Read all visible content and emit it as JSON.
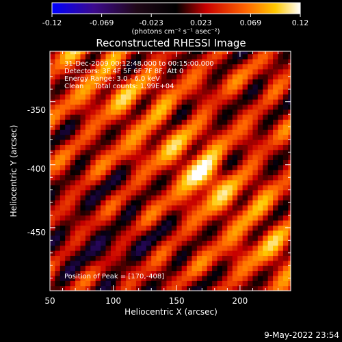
{
  "chart_data": {
    "type": "heatmap",
    "title": "Reconstructed RHESSI Image",
    "xlabel": "Heliocentric X (arcsec)",
    "ylabel": "Heliocentric Y (arcsec)",
    "xlim": [
      50,
      240
    ],
    "ylim": [
      -500,
      -310
    ],
    "x_ticks": [
      50,
      100,
      150,
      200
    ],
    "y_ticks": [
      -350,
      -400,
      -450
    ],
    "colorbar": {
      "range": [
        -0.12,
        0.12
      ],
      "ticks": [
        "-0.12",
        "-0.069",
        "-0.023",
        "0.023",
        "0.069",
        "0.12"
      ],
      "label": "(photons cm⁻² s⁻¹ asec⁻²)"
    },
    "annotations": [
      "31-Dec-2009 00:12:48.000 to 00:15:00.000",
      "Detectors: 3F 4F 5F 6F 7F 8F, Att 0",
      "Energy Range: 3.0 - 6.0 keV",
      "Clean     Total counts: 1.99E+04"
    ],
    "peak_text": "Position of Peak = [170,-408]",
    "peak": {
      "x": 170,
      "y": -408,
      "value": 0.12
    },
    "stripe_angle_deg": 135,
    "colormap": [
      "#0000ff",
      "#3c0a8c",
      "#000000",
      "#c80000",
      "#ff6400",
      "#ffc800",
      "#ffffff"
    ]
  },
  "timestamp": "9-May-2022 23:54"
}
